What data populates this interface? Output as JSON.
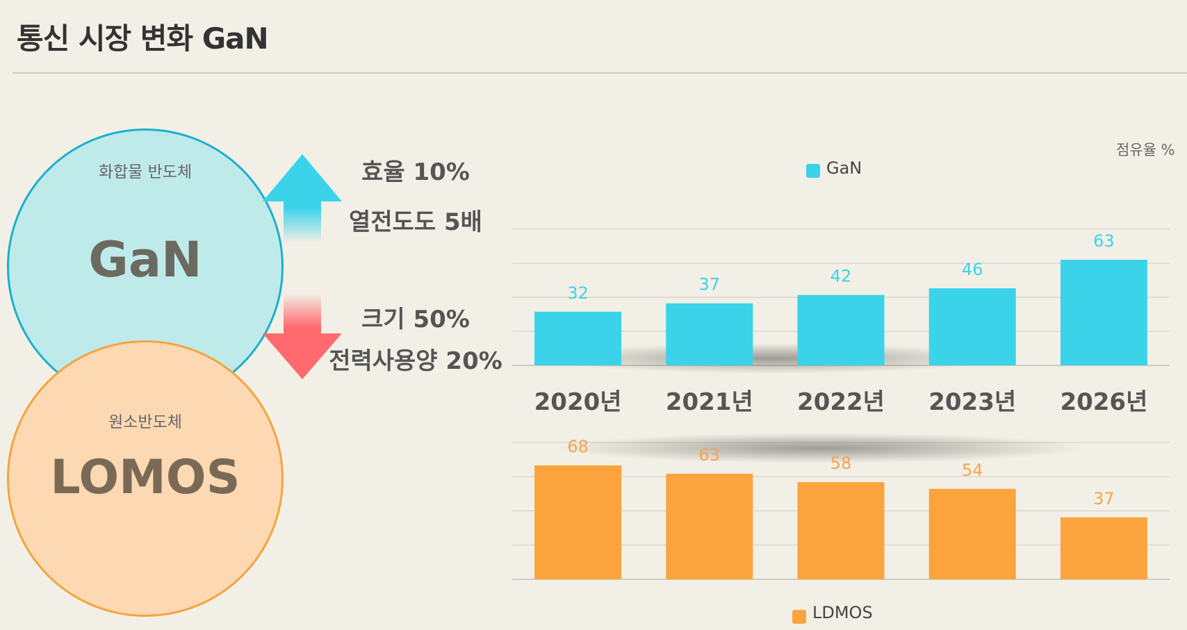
{
  "title": "통신 시장 변화 GaN",
  "gan_circle": {
    "sub": "화합물 반도체",
    "main": "GaN"
  },
  "ldmos_circle": {
    "sub": "원소반도체",
    "main": "LOMOS"
  },
  "stats_up": [
    "효율 10%",
    "열전도도 5배"
  ],
  "stats_down": [
    "크기 50%",
    "전력사용양 20%"
  ],
  "unit": "점유율 %",
  "colors": {
    "gan": "#3ad3ea",
    "ldmos": "#fba43e",
    "gan_label": "#3ad3ea",
    "ldmos_label": "#f5a34e"
  },
  "chart_data": [
    {
      "type": "bar",
      "categories": [
        "2020년",
        "2021년",
        "2022년",
        "2023년",
        "2026년"
      ],
      "series": [
        {
          "name": "GaN",
          "values": [
            32,
            37,
            42,
            46,
            63
          ]
        }
      ],
      "ylim": [
        0,
        80
      ],
      "grid": true,
      "legend": "top-center"
    },
    {
      "type": "bar",
      "categories": [
        "2020년",
        "2021년",
        "2022년",
        "2023년",
        "2026년"
      ],
      "series": [
        {
          "name": "LDMOS",
          "values": [
            68,
            63,
            58,
            54,
            37
          ]
        }
      ],
      "ylim": [
        0,
        80
      ],
      "grid": true,
      "legend": "bottom-center"
    }
  ]
}
